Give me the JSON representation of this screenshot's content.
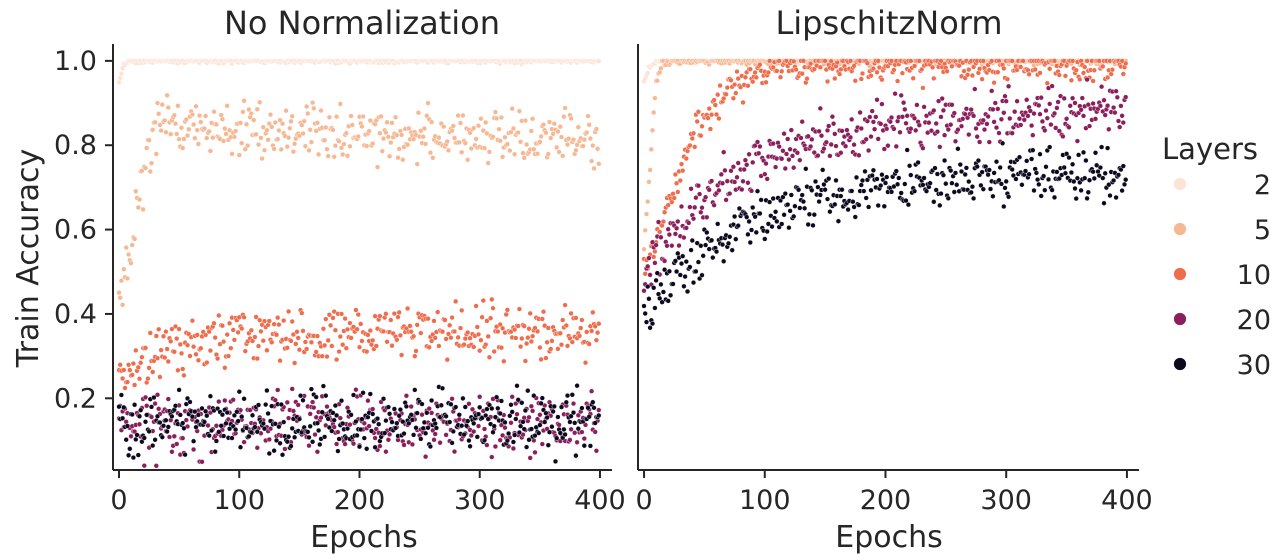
{
  "chart_data": {
    "type": "scatter",
    "ylabel": "Train Accuracy",
    "ylim": [
      0.03,
      1.04
    ],
    "yticks": [
      0.2,
      0.4,
      0.6,
      0.8,
      1.0
    ],
    "ytick_labels": [
      "0.2",
      "0.4",
      "0.6",
      "0.8",
      "1.0"
    ],
    "legend": {
      "title": "Layers",
      "position": "right",
      "entries": [
        {
          "label": "2",
          "color": "#fbe3d6"
        },
        {
          "label": "5",
          "color": "#f6b893"
        },
        {
          "label": "10",
          "color": "#ee6d4d"
        },
        {
          "label": "20",
          "color": "#8a1f5c"
        },
        {
          "label": "30",
          "color": "#0d0a1f"
        }
      ]
    },
    "panels": [
      {
        "title": "No Normalization",
        "xlabel": "Epochs",
        "xlim": [
          -5,
          410
        ],
        "xticks": [
          0,
          100,
          200,
          300,
          400
        ],
        "xtick_labels": [
          "0",
          "100",
          "200",
          "300",
          "400"
        ],
        "series": [
          {
            "name": "2",
            "samples": 400,
            "trend": [
              [
                0,
                0.95
              ],
              [
                4,
                0.99
              ],
              [
                8,
                1.0
              ],
              [
                400,
                1.0
              ]
            ],
            "noise": 0.003
          },
          {
            "name": "5",
            "samples": 400,
            "trend": [
              [
                0,
                0.45
              ],
              [
                5,
                0.5
              ],
              [
                12,
                0.6
              ],
              [
                20,
                0.72
              ],
              [
                30,
                0.84
              ],
              [
                40,
                0.86
              ],
              [
                60,
                0.84
              ],
              [
                400,
                0.81
              ]
            ],
            "noise": 0.03
          },
          {
            "name": "10",
            "samples": 400,
            "trend": [
              [
                0,
                0.24
              ],
              [
                10,
                0.26
              ],
              [
                30,
                0.3
              ],
              [
                60,
                0.33
              ],
              [
                100,
                0.35
              ],
              [
                400,
                0.36
              ]
            ],
            "noise": 0.03
          },
          {
            "name": "20",
            "samples": 400,
            "trend": [
              [
                0,
                0.14
              ],
              [
                400,
                0.14
              ]
            ],
            "noise": 0.035
          },
          {
            "name": "30",
            "samples": 400,
            "trend": [
              [
                0,
                0.14
              ],
              [
                400,
                0.15
              ]
            ],
            "noise": 0.035
          }
        ]
      },
      {
        "title": "LipschitzNorm",
        "xlabel": "Epochs",
        "xlim": [
          -5,
          410
        ],
        "xticks": [
          0,
          100,
          200,
          300,
          400
        ],
        "xtick_labels": [
          "0",
          "100",
          "200",
          "300",
          "400"
        ],
        "series": [
          {
            "name": "2",
            "samples": 400,
            "trend": [
              [
                0,
                0.95
              ],
              [
                5,
                0.99
              ],
              [
                12,
                1.0
              ],
              [
                400,
                1.0
              ]
            ],
            "noise": 0.003
          },
          {
            "name": "5",
            "samples": 400,
            "trend": [
              [
                0,
                0.55
              ],
              [
                5,
                0.75
              ],
              [
                10,
                0.95
              ],
              [
                15,
                1.0
              ],
              [
                400,
                1.0
              ]
            ],
            "noise": 0.005
          },
          {
            "name": "10",
            "samples": 400,
            "trend": [
              [
                0,
                0.5
              ],
              [
                20,
                0.66
              ],
              [
                40,
                0.82
              ],
              [
                60,
                0.9
              ],
              [
                80,
                0.95
              ],
              [
                110,
                0.98
              ],
              [
                150,
                0.99
              ],
              [
                400,
                0.99
              ]
            ],
            "noise": 0.02
          },
          {
            "name": "20",
            "samples": 400,
            "trend": [
              [
                0,
                0.48
              ],
              [
                20,
                0.58
              ],
              [
                50,
                0.68
              ],
              [
                100,
                0.77
              ],
              [
                150,
                0.82
              ],
              [
                200,
                0.85
              ],
              [
                300,
                0.87
              ],
              [
                400,
                0.9
              ]
            ],
            "noise": 0.03
          },
          {
            "name": "30",
            "samples": 400,
            "trend": [
              [
                0,
                0.4
              ],
              [
                20,
                0.47
              ],
              [
                50,
                0.56
              ],
              [
                100,
                0.64
              ],
              [
                150,
                0.68
              ],
              [
                200,
                0.7
              ],
              [
                300,
                0.73
              ],
              [
                400,
                0.72
              ]
            ],
            "noise": 0.03
          }
        ]
      }
    ]
  }
}
